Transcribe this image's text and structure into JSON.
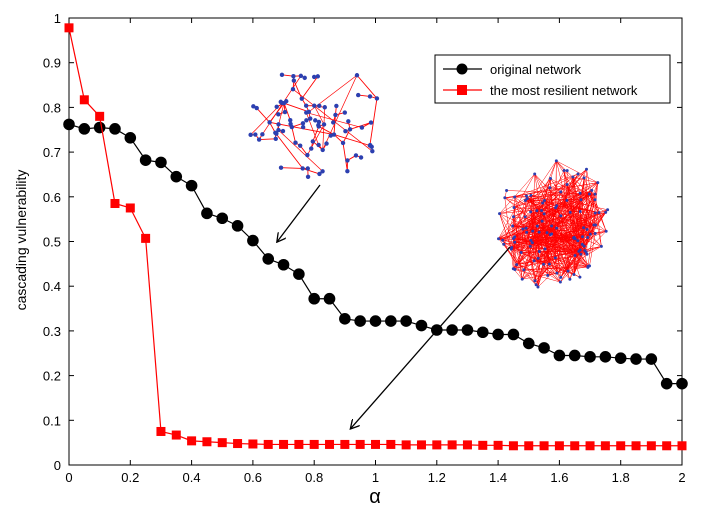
{
  "chart_data": {
    "type": "line",
    "xlabel": "α",
    "ylabel": "cascading vulnerability",
    "xlim": [
      0,
      2
    ],
    "ylim": [
      0,
      1
    ],
    "xticks": [
      "0",
      "0.2",
      "0.4",
      "0.6",
      "0.8",
      "1",
      "1.2",
      "1.4",
      "1.6",
      "1.8",
      "2"
    ],
    "yticks": [
      "0",
      "0.1",
      "0.2",
      "0.3",
      "0.4",
      "0.5",
      "0.6",
      "0.7",
      "0.8",
      "0.9",
      "1"
    ],
    "grid": false,
    "legend_position": "top-right",
    "x": [
      0,
      0.05,
      0.1,
      0.15,
      0.2,
      0.25,
      0.3,
      0.35,
      0.4,
      0.45,
      0.5,
      0.55,
      0.6,
      0.65,
      0.7,
      0.75,
      0.8,
      0.85,
      0.9,
      0.95,
      1.0,
      1.05,
      1.1,
      1.15,
      1.2,
      1.25,
      1.3,
      1.35,
      1.4,
      1.45,
      1.5,
      1.55,
      1.6,
      1.65,
      1.7,
      1.75,
      1.8,
      1.85,
      1.9,
      1.95,
      2.0
    ],
    "series": [
      {
        "name": "original network",
        "color": "#000000",
        "marker": "circle",
        "values": [
          0.762,
          0.752,
          0.755,
          0.752,
          0.732,
          0.682,
          0.677,
          0.645,
          0.625,
          0.563,
          0.552,
          0.535,
          0.502,
          0.461,
          0.448,
          0.427,
          0.372,
          0.372,
          0.327,
          0.322,
          0.322,
          0.322,
          0.322,
          0.312,
          0.302,
          0.302,
          0.302,
          0.297,
          0.292,
          0.292,
          0.272,
          0.262,
          0.245,
          0.245,
          0.242,
          0.242,
          0.239,
          0.237,
          0.237,
          0.182,
          0.182
        ]
      },
      {
        "name": "the most resilient network",
        "color": "#ff0000",
        "marker": "square",
        "values": [
          0.978,
          0.817,
          0.78,
          0.585,
          0.575,
          0.507,
          0.075,
          0.067,
          0.054,
          0.052,
          0.05,
          0.048,
          0.047,
          0.046,
          0.046,
          0.046,
          0.046,
          0.046,
          0.046,
          0.046,
          0.046,
          0.046,
          0.045,
          0.045,
          0.045,
          0.045,
          0.045,
          0.044,
          0.044,
          0.043,
          0.043,
          0.043,
          0.043,
          0.043,
          0.043,
          0.043,
          0.043,
          0.043,
          0.043,
          0.043,
          0.043
        ]
      }
    ],
    "annotations": [
      {
        "type": "network-inset",
        "style": "sparse",
        "target_x": 0.68,
        "target_y": 0.46
      },
      {
        "type": "network-inset",
        "style": "dense",
        "target_x": 0.92,
        "target_y": 0.08
      }
    ]
  },
  "colors": {
    "network_node": "#2c3fb0",
    "network_edge": "#ff0000"
  }
}
